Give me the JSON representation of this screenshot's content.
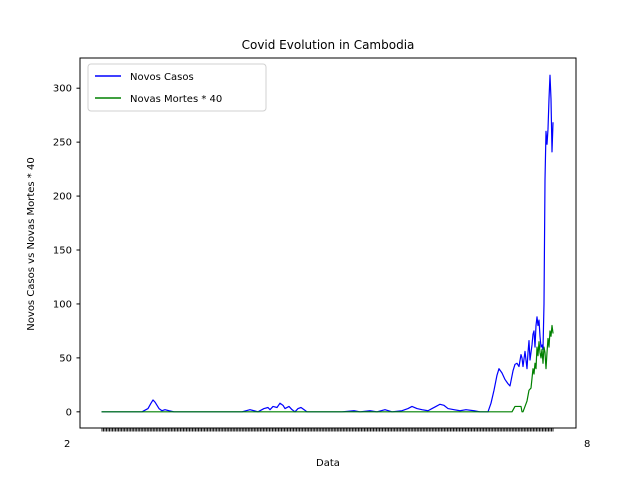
{
  "chart_data": {
    "type": "line",
    "title": "Covid Evolution in Cambodia",
    "xlabel": "Data",
    "ylabel": "Novos Casos vs Novas Mortes * 40",
    "ylim": [
      -15,
      328
    ],
    "yticks": [
      0,
      50,
      100,
      150,
      200,
      250,
      300
    ],
    "legend_position": "top-left",
    "grid": false,
    "x_tick_labels_overlapping": true,
    "x_tick_label_fragments": [
      "2",
      "8"
    ],
    "series": [
      {
        "name": "Novos Casos",
        "color": "#0000ff",
        "points": [
          [
            0,
            0
          ],
          [
            40,
            0
          ],
          [
            46,
            3
          ],
          [
            49,
            8
          ],
          [
            51,
            11
          ],
          [
            53,
            9
          ],
          [
            55,
            6
          ],
          [
            57,
            3
          ],
          [
            60,
            1
          ],
          [
            63,
            2
          ],
          [
            67,
            1
          ],
          [
            72,
            0
          ],
          [
            100,
            0
          ],
          [
            140,
            0
          ],
          [
            148,
            2
          ],
          [
            152,
            1
          ],
          [
            156,
            0
          ],
          [
            162,
            3
          ],
          [
            166,
            4
          ],
          [
            168,
            2
          ],
          [
            171,
            5
          ],
          [
            175,
            4
          ],
          [
            178,
            8
          ],
          [
            181,
            6
          ],
          [
            183,
            3
          ],
          [
            187,
            5
          ],
          [
            190,
            2
          ],
          [
            193,
            0
          ],
          [
            196,
            3
          ],
          [
            199,
            4
          ],
          [
            202,
            2
          ],
          [
            205,
            0
          ],
          [
            240,
            0
          ],
          [
            252,
            1
          ],
          [
            258,
            0
          ],
          [
            268,
            1
          ],
          [
            275,
            0
          ],
          [
            283,
            2
          ],
          [
            290,
            0
          ],
          [
            300,
            1
          ],
          [
            306,
            3
          ],
          [
            310,
            5
          ],
          [
            315,
            3
          ],
          [
            320,
            2
          ],
          [
            326,
            1
          ],
          [
            330,
            3
          ],
          [
            334,
            5
          ],
          [
            338,
            7
          ],
          [
            342,
            6
          ],
          [
            346,
            3
          ],
          [
            352,
            2
          ],
          [
            358,
            1
          ],
          [
            364,
            2
          ],
          [
            372,
            1
          ],
          [
            378,
            0
          ],
          [
            386,
            0
          ],
          [
            389,
            8
          ],
          [
            392,
            20
          ],
          [
            395,
            34
          ],
          [
            397,
            40
          ],
          [
            400,
            36
          ],
          [
            403,
            30
          ],
          [
            406,
            26
          ],
          [
            408,
            24
          ],
          [
            411,
            38
          ],
          [
            413,
            44
          ],
          [
            415,
            45
          ],
          [
            417,
            42
          ],
          [
            419,
            53
          ],
          [
            420,
            50
          ],
          [
            421,
            42
          ],
          [
            423,
            56
          ],
          [
            425,
            40
          ],
          [
            426,
            55
          ],
          [
            427,
            66
          ],
          [
            428,
            48
          ],
          [
            430,
            62
          ],
          [
            431,
            72
          ],
          [
            432,
            75
          ],
          [
            433,
            60
          ],
          [
            434,
            80
          ],
          [
            435,
            88
          ],
          [
            436,
            80
          ],
          [
            437,
            85
          ],
          [
            438,
            70
          ],
          [
            439,
            60
          ],
          [
            440,
            62
          ],
          [
            441,
            58
          ],
          [
            442,
            100
          ],
          [
            443,
            215
          ],
          [
            444,
            260
          ],
          [
            445,
            248
          ],
          [
            446,
            262
          ],
          [
            447,
            290
          ],
          [
            448,
            312
          ],
          [
            449,
            290
          ],
          [
            450,
            241
          ],
          [
            451,
            268
          ]
        ]
      },
      {
        "name": "Novas Mortes * 40",
        "color": "#008000",
        "points": [
          [
            0,
            0
          ],
          [
            410,
            0
          ],
          [
            413,
            5
          ],
          [
            416,
            5
          ],
          [
            419,
            5
          ],
          [
            420,
            0
          ],
          [
            421,
            0
          ],
          [
            423,
            5
          ],
          [
            425,
            10
          ],
          [
            427,
            20
          ],
          [
            429,
            22
          ],
          [
            431,
            40
          ],
          [
            432,
            35
          ],
          [
            433,
            45
          ],
          [
            434,
            40
          ],
          [
            435,
            60
          ],
          [
            436,
            52
          ],
          [
            437,
            65
          ],
          [
            438,
            55
          ],
          [
            439,
            50
          ],
          [
            440,
            58
          ],
          [
            441,
            45
          ],
          [
            442,
            60
          ],
          [
            443,
            55
          ],
          [
            444,
            40
          ],
          [
            445,
            55
          ],
          [
            446,
            68
          ],
          [
            447,
            60
          ],
          [
            448,
            75
          ],
          [
            449,
            70
          ],
          [
            450,
            80
          ],
          [
            451,
            73
          ]
        ]
      }
    ]
  }
}
